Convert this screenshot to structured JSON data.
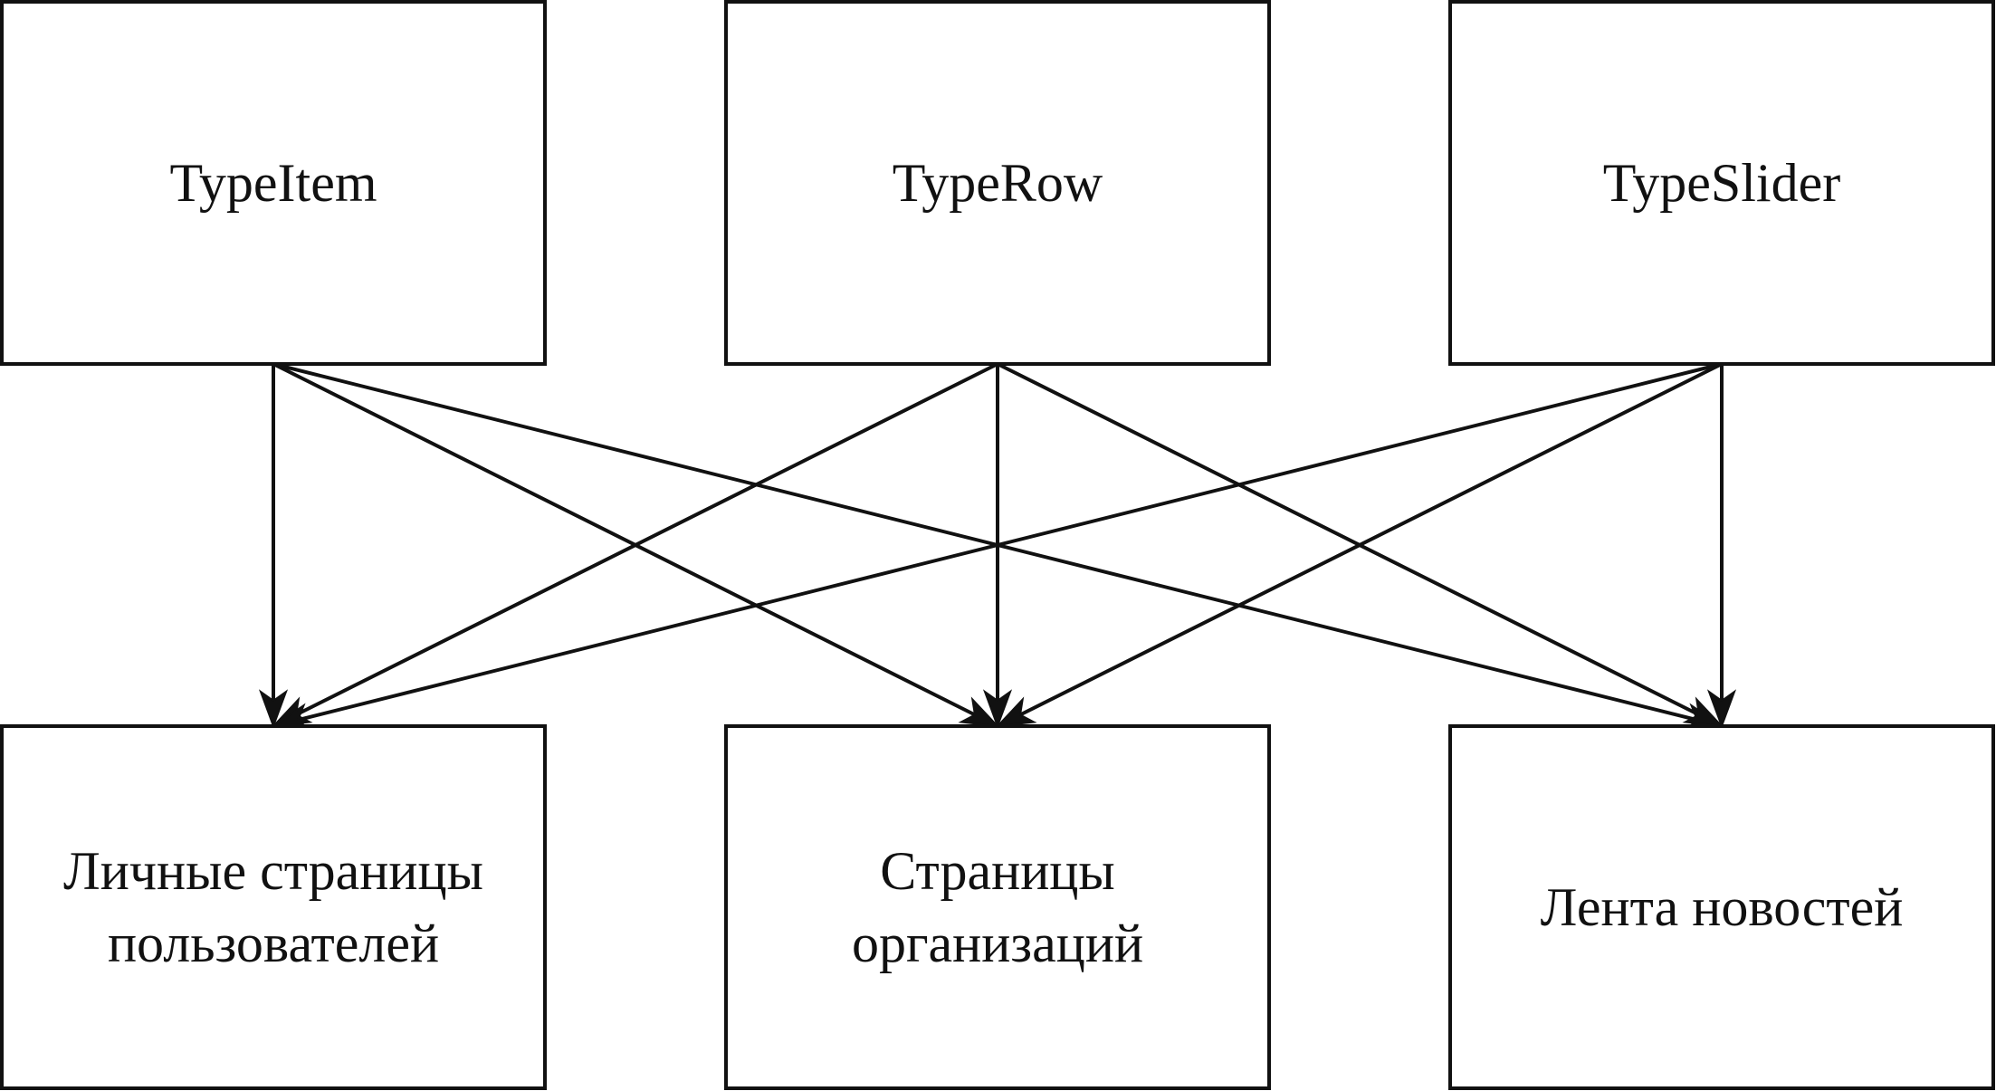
{
  "nodes": [
    {
      "id": "type-item",
      "label_lines": [
        "TypeItem"
      ]
    },
    {
      "id": "type-row",
      "label_lines": [
        "TypeRow"
      ]
    },
    {
      "id": "type-slider",
      "label_lines": [
        "TypeSlider"
      ]
    },
    {
      "id": "user-pages",
      "label_lines": [
        "Личные страницы",
        "пользователей"
      ]
    },
    {
      "id": "org-pages",
      "label_lines": [
        "Страницы",
        "организаций"
      ]
    },
    {
      "id": "news-feed",
      "label_lines": [
        "Лента новостей"
      ]
    }
  ],
  "edges": [
    {
      "from": "type-item",
      "to": "user-pages"
    },
    {
      "from": "type-item",
      "to": "org-pages"
    },
    {
      "from": "type-item",
      "to": "news-feed"
    },
    {
      "from": "type-row",
      "to": "user-pages"
    },
    {
      "from": "type-row",
      "to": "org-pages"
    },
    {
      "from": "type-row",
      "to": "news-feed"
    },
    {
      "from": "type-slider",
      "to": "user-pages"
    },
    {
      "from": "type-slider",
      "to": "org-pages"
    },
    {
      "from": "type-slider",
      "to": "news-feed"
    }
  ]
}
